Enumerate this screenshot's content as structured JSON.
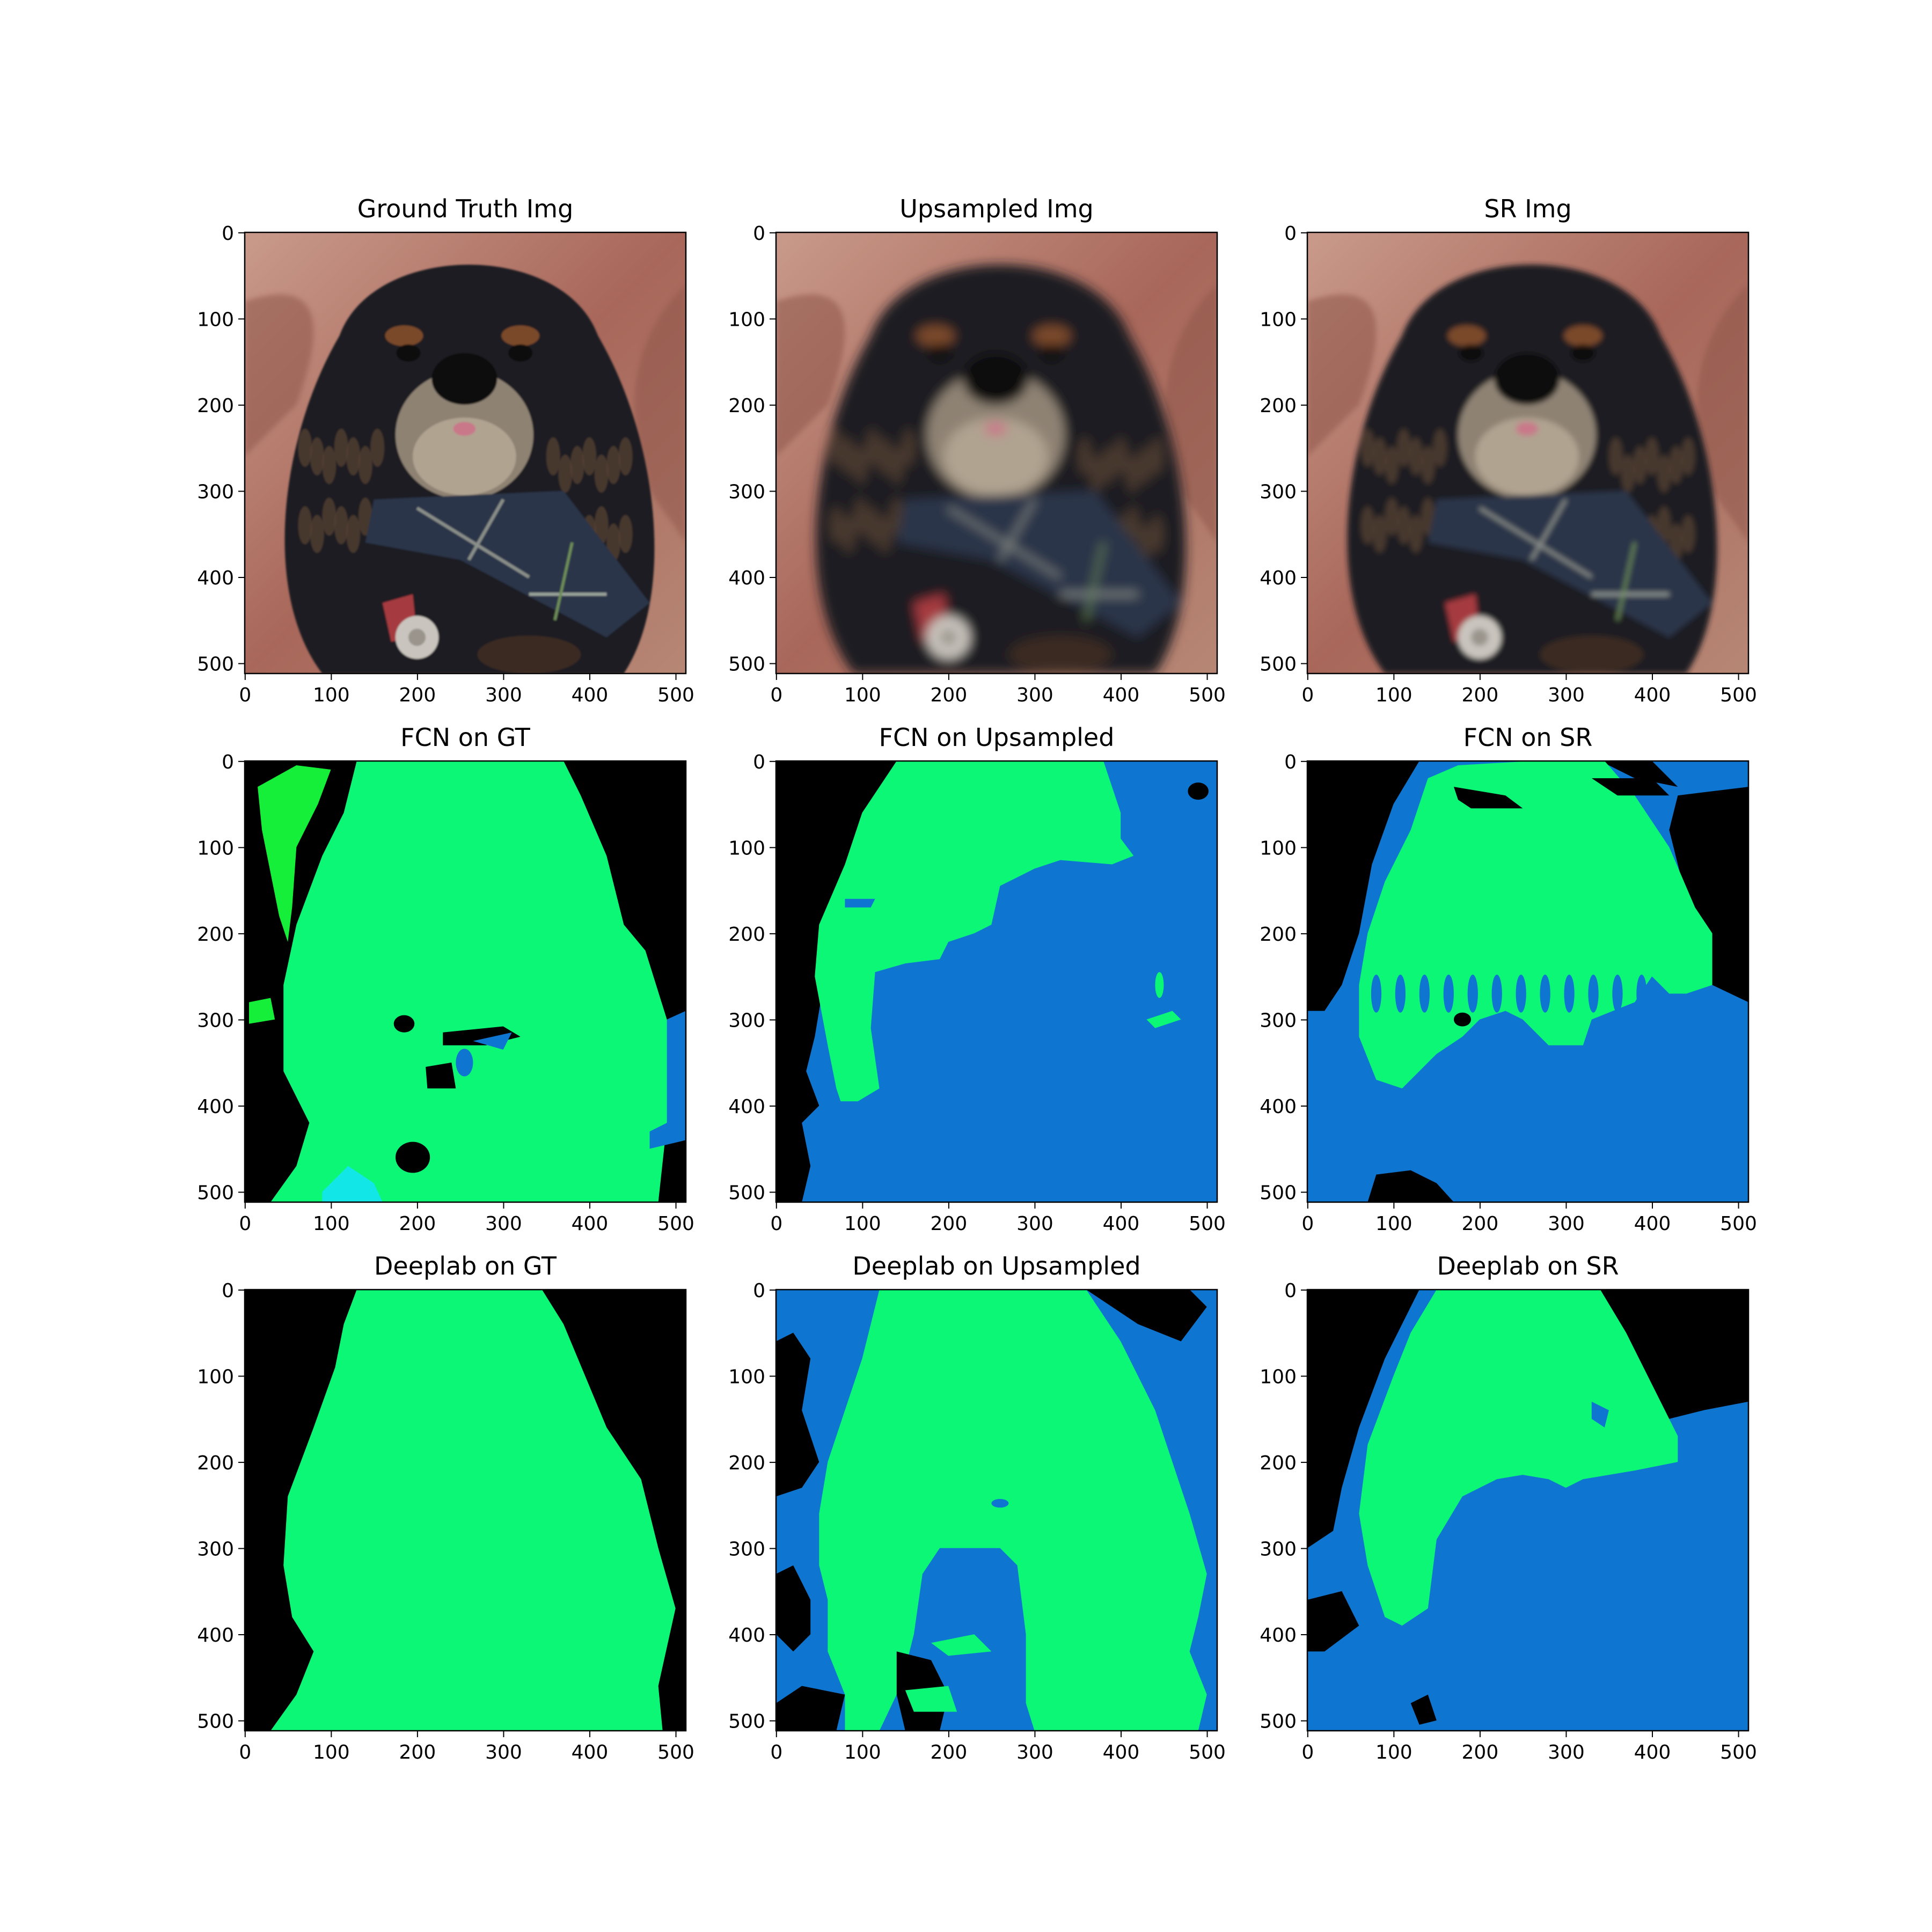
{
  "figure": {
    "panels": [
      {
        "title": "Ground Truth Img",
        "kind": "photo",
        "variant": "sharp"
      },
      {
        "title": "Upsampled Img",
        "kind": "photo",
        "variant": "blur"
      },
      {
        "title": "SR Img",
        "kind": "photo",
        "variant": "sr"
      },
      {
        "title": "FCN on GT",
        "kind": "mask",
        "variant": "fcn_gt"
      },
      {
        "title": "FCN on Upsampled",
        "kind": "mask",
        "variant": "fcn_up"
      },
      {
        "title": "FCN on SR",
        "kind": "mask",
        "variant": "fcn_sr"
      },
      {
        "title": "Deeplab on GT",
        "kind": "mask",
        "variant": "dl_gt"
      },
      {
        "title": "Deeplab on Upsampled",
        "kind": "mask",
        "variant": "dl_up"
      },
      {
        "title": "Deeplab on SR",
        "kind": "mask",
        "variant": "dl_sr"
      }
    ],
    "x_ticks": [
      "0",
      "100",
      "200",
      "300",
      "400",
      "500"
    ],
    "y_ticks": [
      "0",
      "100",
      "200",
      "300",
      "400",
      "500"
    ],
    "colors": {
      "background": "#000000",
      "dog": "#0cf776",
      "blue_class": "#0e75d0",
      "light_green_class": "#16ef3a",
      "cyan_class": "#12e6e6"
    }
  }
}
